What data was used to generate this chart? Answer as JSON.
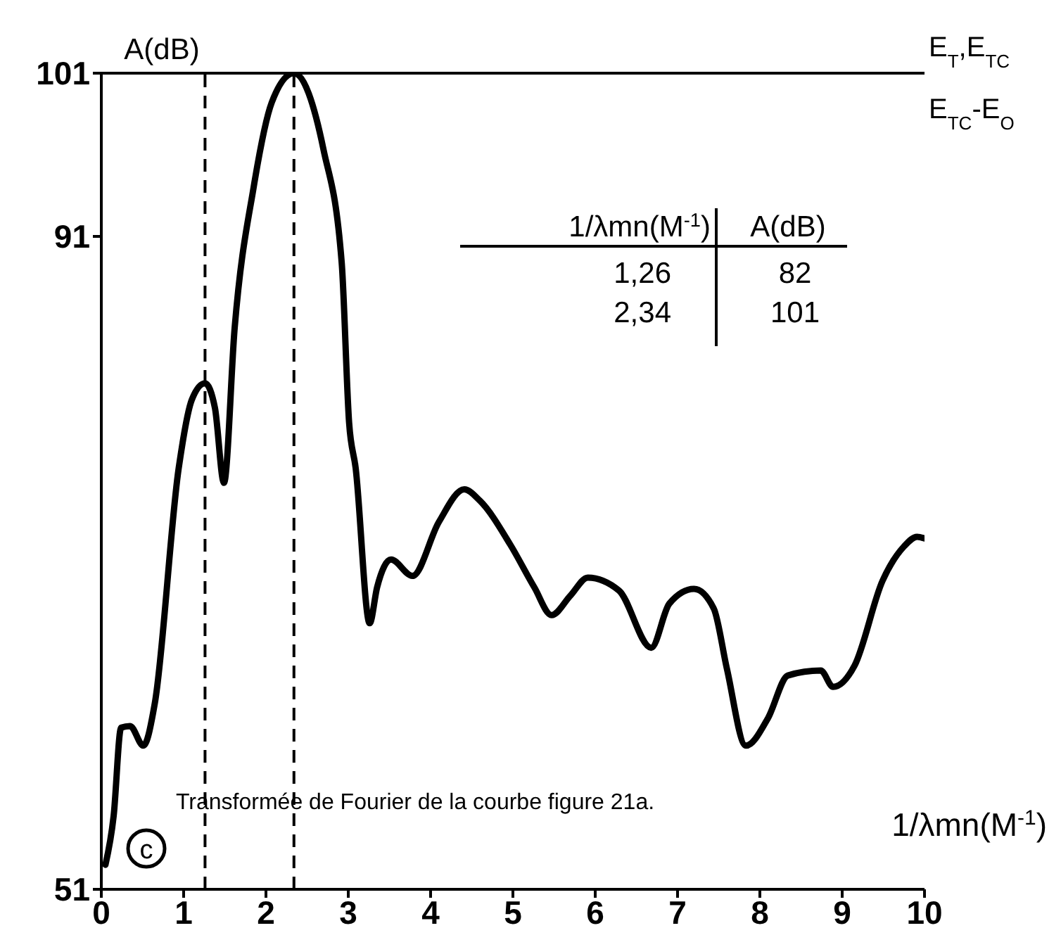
{
  "chart_data": {
    "type": "line",
    "xlabel": "1/λmn(M$^{-1}$)",
    "ylabel": "A(dB)",
    "xlim": [
      0,
      10
    ],
    "xticks": [
      0,
      1,
      2,
      3,
      4,
      5,
      6,
      7,
      8,
      9,
      10
    ],
    "ylim": [
      51,
      101
    ],
    "yticks": [
      51,
      91,
      101
    ],
    "marker": "none",
    "line_style": "solid",
    "series": [
      {
        "color": "#000000",
        "x": [
          0.05,
          0.15,
          0.24,
          0.35,
          0.51,
          0.65,
          0.94,
          1.1,
          1.26,
          1.38,
          1.49,
          1.62,
          1.85,
          2.07,
          2.34,
          2.7,
          2.92,
          3.01,
          3.09,
          3.26,
          3.35,
          3.52,
          3.78,
          4.1,
          4.41,
          4.6,
          4.97,
          5.26,
          5.47,
          5.7,
          5.91,
          6.29,
          6.68,
          6.9,
          7.2,
          7.44,
          7.6,
          7.83,
          8.1,
          8.34,
          8.74,
          8.89,
          9.15,
          9.49,
          9.75,
          9.91,
          10.0
        ],
        "values": [
          52.5,
          55.5,
          60.9,
          61.0,
          59.8,
          62.4,
          76.8,
          81.0,
          82,
          80.5,
          75.9,
          85.4,
          94.0,
          99.2,
          101,
          96.3,
          89.4,
          79.6,
          76.8,
          67.3,
          69.5,
          71.2,
          70.2,
          73.5,
          75.5,
          74.8,
          72.1,
          69.5,
          67.8,
          69.0,
          70.1,
          69.3,
          65.8,
          68.5,
          69.4,
          68.2,
          64.5,
          59.8,
          61.5,
          64.1,
          64.4,
          63.4,
          64.7,
          69.9,
          72.0,
          72.6,
          72.5
        ]
      }
    ],
    "ref_lines": [
      {
        "axis": "y",
        "value": 101,
        "label": "E$_{T}$,E$_{TC}$",
        "color": "#000000",
        "line_style": "solid"
      },
      {
        "axis": "x",
        "value": 1.26,
        "color": "#000000",
        "line_style": "dashed"
      },
      {
        "axis": "x",
        "value": 2.34,
        "color": "#000000",
        "line_style": "dashed"
      }
    ],
    "annotations": [
      "E$_{TC}$-E$_{O}$",
      "1/λmn(M$^{-1}$)",
      "A(dB)",
      "1,26",
      "82",
      "2,34",
      "101",
      "Transformée de Fourier de la courbe figure 21a.",
      "c"
    ]
  }
}
